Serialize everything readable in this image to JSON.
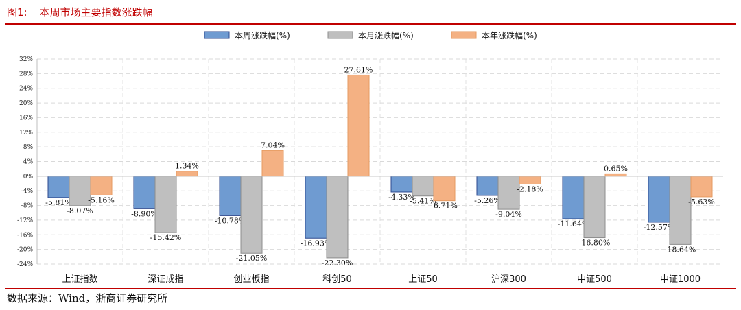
{
  "figure": {
    "number": "图1:",
    "title": "本周市场主要指数涨跌幅",
    "source": "数据来源：Wind，浙商证券研究所"
  },
  "colors": {
    "accent_red": "#c00000",
    "week": "#6f9bd1",
    "week_border": "#2e4a8f",
    "month": "#bfbfbf",
    "month_border": "#8c8c8c",
    "year": "#f4b183",
    "year_border": "#e69a60"
  },
  "chart_data": {
    "type": "bar",
    "categories": [
      "上证指数",
      "深证成指",
      "创业板指",
      "科创50",
      "上证50",
      "沪深300",
      "中证500",
      "中证1000"
    ],
    "series": [
      {
        "name": "本周涨跌幅(%)",
        "values": [
          -5.81,
          -8.9,
          -10.78,
          -16.93,
          -4.33,
          -5.26,
          -11.64,
          -12.57
        ],
        "labels": [
          "-5.81%",
          "-8.90%",
          "-10.78%",
          "-16.93%",
          "-4.33%",
          "-5.26%",
          "-11.64%",
          "-12.57%"
        ]
      },
      {
        "name": "本月涨跌幅(%)",
        "values": [
          -8.07,
          -15.42,
          -21.05,
          -22.3,
          -5.41,
          -9.04,
          -16.8,
          -18.64
        ],
        "labels": [
          "-8.07%",
          "-15.42%",
          "-21.05%",
          "-22.30%",
          "-5.41%",
          "-9.04%",
          "-16.80%",
          "-18.64%"
        ]
      },
      {
        "name": "本年涨跌幅(%)",
        "values": [
          -5.16,
          1.34,
          7.04,
          27.61,
          -6.71,
          -2.18,
          0.65,
          -5.63
        ],
        "labels": [
          "-5.16%",
          "1.34%",
          "7.04%",
          "27.61%",
          "-6.71%",
          "-2.18%",
          "0.65%",
          "-5.63%"
        ]
      }
    ],
    "ylim": [
      -24,
      32
    ],
    "yticks": [
      "-24%",
      "-20%",
      "-16%",
      "-12%",
      "-8%",
      "-4%",
      "0%",
      "4%",
      "8%",
      "12%",
      "16%",
      "20%",
      "24%",
      "28%",
      "32%"
    ],
    "grid": true,
    "legend_position": "top-center"
  }
}
